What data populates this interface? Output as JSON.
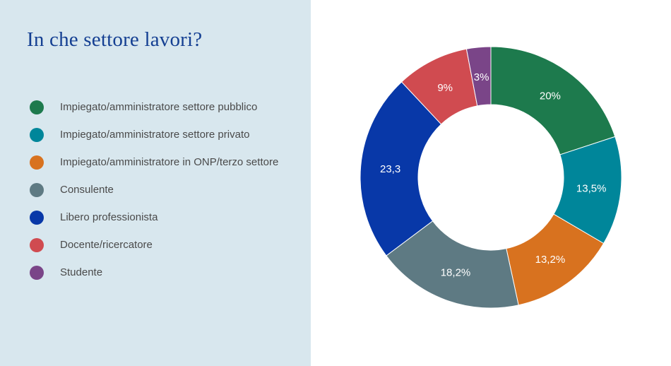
{
  "panel": {
    "title": "In che settore lavori?"
  },
  "colors": {
    "page_bg": "#ffffff",
    "panel_bg": "#d8e7ee",
    "title_text": "#143f92",
    "legend_text": "#4a4a4a",
    "slice_label_text": "#ffffff"
  },
  "chart_data": {
    "type": "pie",
    "subtype": "donut",
    "title": "In che settore lavori?",
    "labels": [
      "Impiegato/amministratore settore pubblico",
      "Impiegato/amministratore settore privato",
      "Impiegato/amministratore in ONP/terzo settore",
      "Consulente",
      "Libero professionista",
      "Docente/ricercatore",
      "Studente"
    ],
    "values": [
      20,
      13.5,
      13.2,
      18.2,
      23.3,
      9,
      3
    ],
    "value_labels": [
      "20%",
      "13,5%",
      "13,2%",
      "18,2%",
      "23,3",
      "9%",
      "3%"
    ],
    "colors": [
      "#1d7a4d",
      "#00869a",
      "#d8721f",
      "#5e7a83",
      "#0838a8",
      "#d04b50",
      "#7a4588"
    ],
    "start_angle_deg": 0,
    "direction": "clockwise",
    "inner_radius_ratio": 0.56,
    "legend_position": "left",
    "grid": false
  }
}
